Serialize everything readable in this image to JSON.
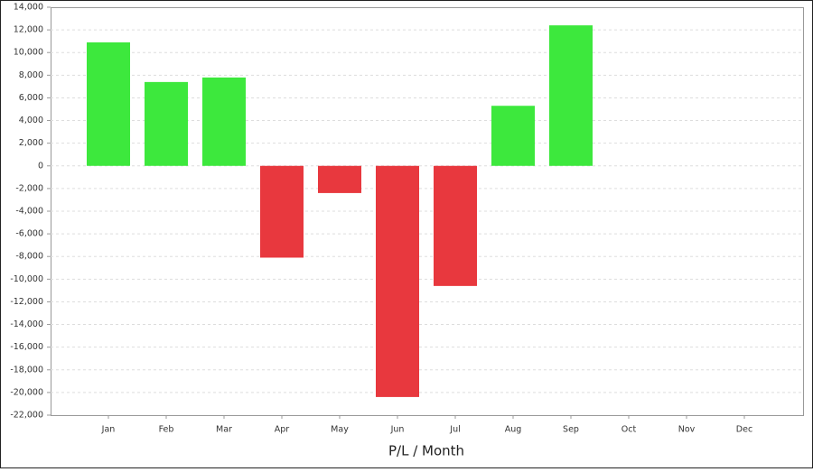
{
  "chart_data": {
    "type": "bar",
    "x_label": "P/L / Month",
    "categories": [
      "Jan",
      "Feb",
      "Mar",
      "Apr",
      "May",
      "Jun",
      "Jul",
      "Aug",
      "Sep",
      "Oct",
      "Nov",
      "Dec"
    ],
    "values": [
      10900,
      7400,
      7800,
      -8100,
      -2400,
      -20400,
      -10600,
      5300,
      12400,
      null,
      null,
      null
    ],
    "positive_color": "#3de83d",
    "negative_color": "#e8383e",
    "ylim": [
      -22000,
      14000
    ],
    "yticks": [
      {
        "value": -22000,
        "label": "-22,000"
      },
      {
        "value": -20000,
        "label": "-20,000"
      },
      {
        "value": -18000,
        "label": "-18,000"
      },
      {
        "value": -16000,
        "label": "-16,000"
      },
      {
        "value": -14000,
        "label": "-14,000"
      },
      {
        "value": -12000,
        "label": "-12,000"
      },
      {
        "value": -10000,
        "label": "-10,000"
      },
      {
        "value": -8000,
        "label": "-8,000"
      },
      {
        "value": -6000,
        "label": "-6,000"
      },
      {
        "value": -4000,
        "label": "-4,000"
      },
      {
        "value": -2000,
        "label": "-2,000"
      },
      0,
      {
        "value": 2000,
        "label": "2,000"
      },
      {
        "value": 4000,
        "label": "4,000"
      },
      {
        "value": 6000,
        "label": "6,000"
      },
      {
        "value": 8000,
        "label": "8,000"
      },
      {
        "value": 10000,
        "label": "10,000"
      },
      {
        "value": 12000,
        "label": "12,000"
      },
      {
        "value": 14000,
        "label": "14,000"
      }
    ],
    "grid": true
  }
}
